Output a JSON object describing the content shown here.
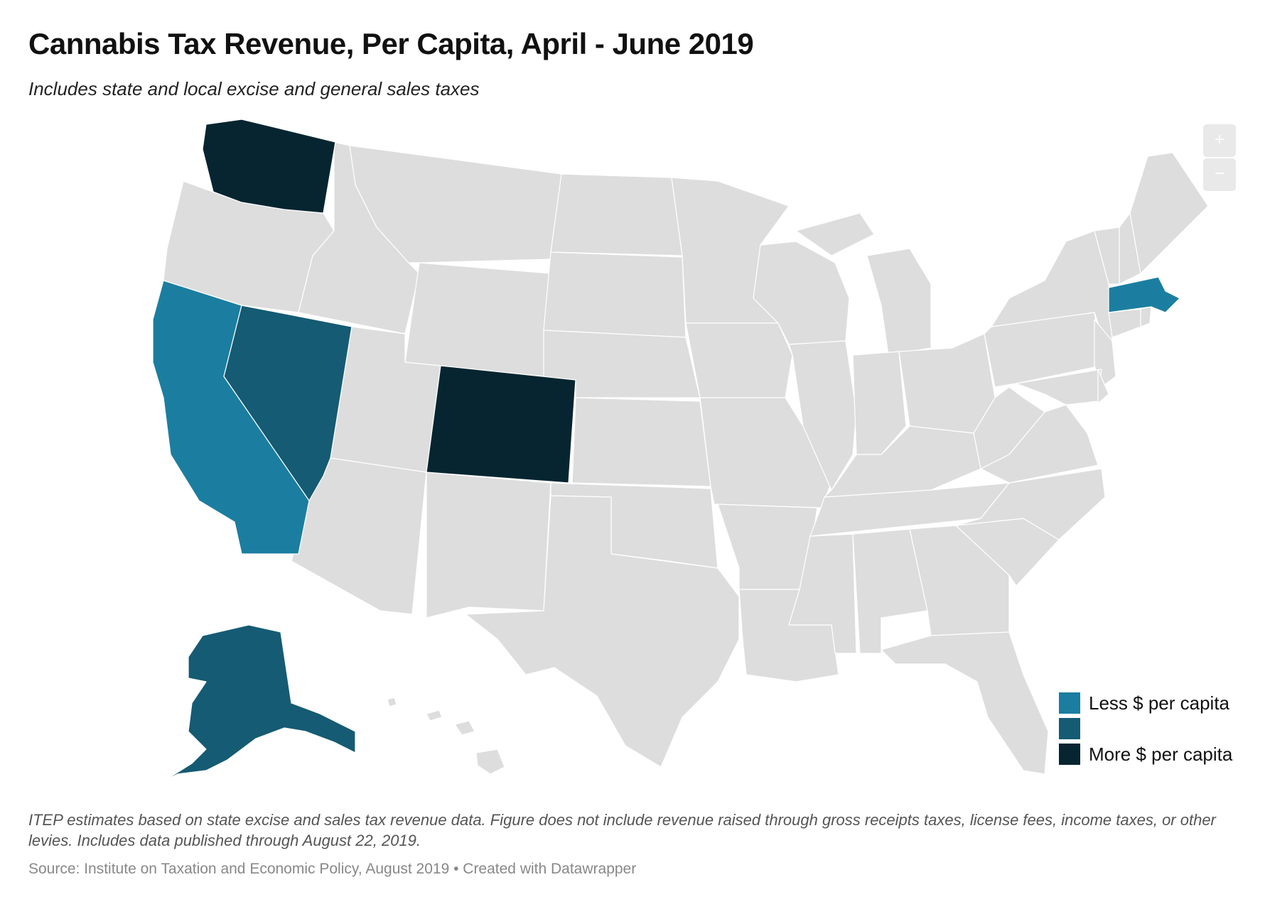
{
  "title": "Cannabis Tax Revenue, Per Capita, April - June 2019",
  "subtitle": "Includes state and local excise and general sales taxes",
  "zoom": {
    "in_label": "+",
    "out_label": "−"
  },
  "colors": {
    "no_data": "#dddddd",
    "low": "#1b7ea0",
    "mid": "#155b73",
    "high": "#062530",
    "border": "#ffffff"
  },
  "states": {
    "WA": "high",
    "OR": "none",
    "CA": "low",
    "NV": "mid",
    "CO": "high",
    "MA": "low",
    "AK": "mid"
  },
  "legend": [
    {
      "label": "Less $ per capita",
      "level": "low"
    },
    {
      "label": "",
      "level": "mid"
    },
    {
      "label": "More $ per capita",
      "level": "high"
    }
  ],
  "note": "ITEP estimates based on state excise and sales tax revenue data. Figure does not include revenue raised through gross receipts taxes, license fees, income taxes, or other levies. Includes data published through August 22, 2019.",
  "source": "Source: Institute on Taxation and Economic Policy, August 2019 • Created with Datawrapper"
}
